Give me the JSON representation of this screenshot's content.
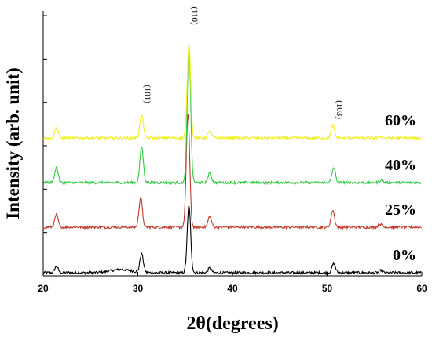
{
  "chart_data": {
    "type": "line",
    "title": "",
    "xlabel": "2θ(degrees)",
    "ylabel": "Intensity (arb. unit)",
    "xlim": [
      20,
      60
    ],
    "xticks": [
      "20",
      "30",
      "40",
      "50",
      "60"
    ],
    "y_tick_labels_shown": false,
    "grid": false,
    "legend": "none",
    "series": [
      {
        "name": "0%",
        "color": "#000000",
        "offset": 0,
        "peaks": [
          [
            21.4,
            8
          ],
          [
            30.4,
            24
          ],
          [
            35.4,
            86
          ],
          [
            37.6,
            6
          ],
          [
            50.7,
            12
          ],
          [
            55.7,
            3
          ]
        ]
      },
      {
        "name": "25%",
        "color": "#c0392b",
        "offset": 58,
        "peaks": [
          [
            21.4,
            16
          ],
          [
            30.3,
            38
          ],
          [
            35.3,
            145
          ],
          [
            37.6,
            14
          ],
          [
            50.6,
            22
          ],
          [
            55.6,
            4
          ]
        ]
      },
      {
        "name": "40%",
        "color": "#2ecc40",
        "offset": 115,
        "peaks": [
          [
            21.4,
            20
          ],
          [
            30.4,
            46
          ],
          [
            35.4,
            175
          ],
          [
            37.6,
            12
          ],
          [
            50.7,
            19
          ],
          [
            55.7,
            3
          ]
        ]
      },
      {
        "name": "60%",
        "color": "#f1f01e",
        "offset": 172,
        "peaks": [
          [
            21.4,
            14
          ],
          [
            30.4,
            30
          ],
          [
            35.4,
            122
          ],
          [
            37.6,
            9
          ],
          [
            50.6,
            16
          ],
          [
            55.6,
            2
          ]
        ]
      }
    ],
    "annotations": [
      {
        "text": "(101)",
        "x": 30.4
      },
      {
        "text": "(110)",
        "x": 35.4
      },
      {
        "text": "(103)",
        "x": 50.7
      }
    ]
  }
}
